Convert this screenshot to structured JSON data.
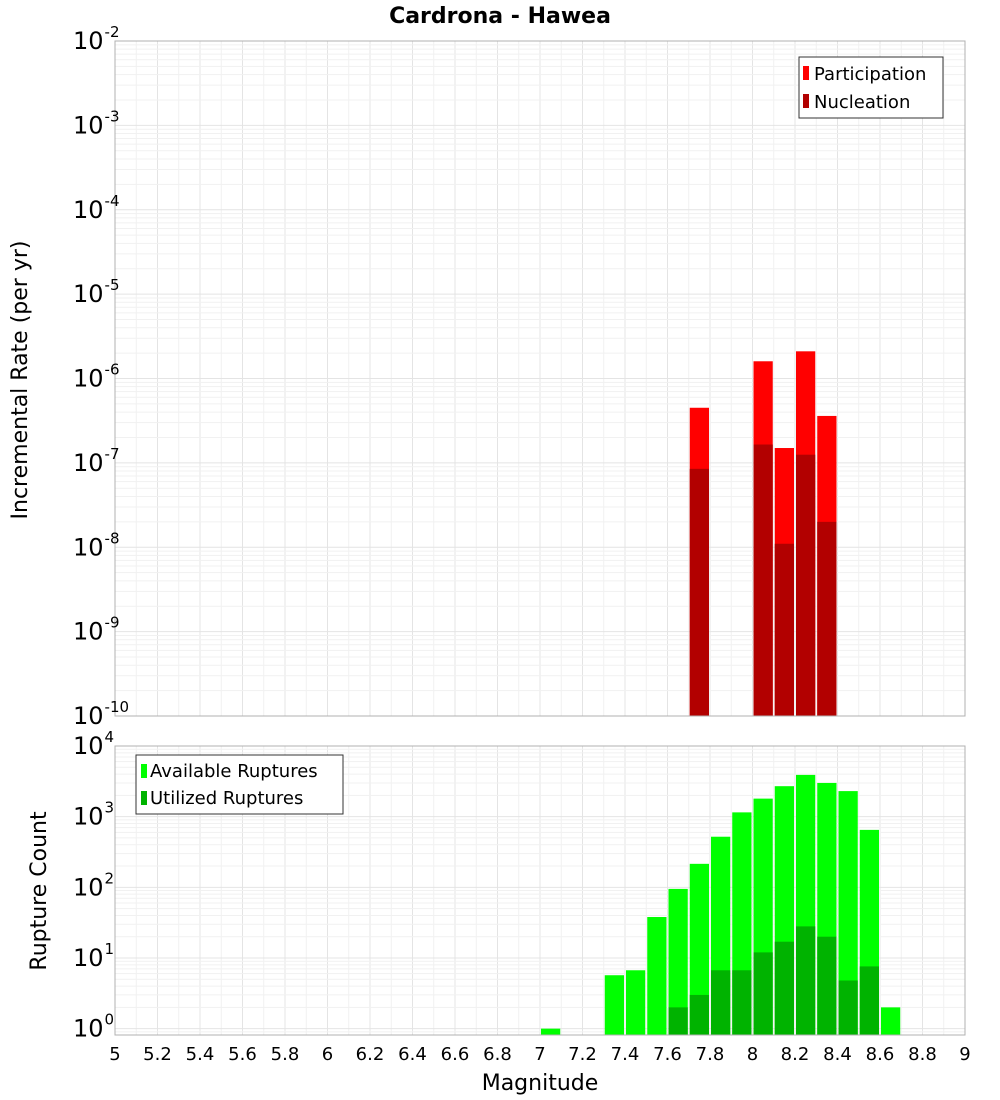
{
  "title": "Cardrona - Hawea",
  "chart_data": [
    {
      "type": "bar",
      "name": "incremental-rate",
      "ylabel": "Incremental Rate (per yr)",
      "yscale": "log",
      "ylim_exp": [
        -10,
        -2
      ],
      "yticks": [
        {
          "base": "10",
          "exp": "-10"
        },
        {
          "base": "10",
          "exp": "-9"
        },
        {
          "base": "10",
          "exp": "-8"
        },
        {
          "base": "10",
          "exp": "-7"
        },
        {
          "base": "10",
          "exp": "-6"
        },
        {
          "base": "10",
          "exp": "-5"
        },
        {
          "base": "10",
          "exp": "-4"
        },
        {
          "base": "10",
          "exp": "-3"
        },
        {
          "base": "10",
          "exp": "-2"
        }
      ],
      "legend_position": "top-right",
      "series": [
        {
          "name": "Participation",
          "color": "#ff0000",
          "x": [
            7.75,
            8.05,
            8.15,
            8.25,
            8.35
          ],
          "values": [
            4.5e-07,
            1.6e-06,
            1.5e-07,
            2.1e-06,
            3.6e-07
          ]
        },
        {
          "name": "Nucleation",
          "color": "#b20000",
          "x": [
            7.75,
            8.05,
            8.15,
            8.25,
            8.35
          ],
          "values": [
            8.5e-08,
            1.65e-07,
            1.1e-08,
            1.25e-07,
            2e-08
          ]
        }
      ]
    },
    {
      "type": "bar",
      "name": "rupture-count",
      "ylabel": "Rupture Count",
      "yscale": "log",
      "ylim_exp": [
        -0.09,
        4
      ],
      "yticks": [
        {
          "base": "10",
          "exp": "0"
        },
        {
          "base": "10",
          "exp": "1"
        },
        {
          "base": "10",
          "exp": "2"
        },
        {
          "base": "10",
          "exp": "3"
        },
        {
          "base": "10",
          "exp": "4"
        }
      ],
      "legend_position": "top-left",
      "series": [
        {
          "name": "Available Ruptures",
          "color": "#00ff00",
          "x": [
            7.05,
            7.35,
            7.45,
            7.55,
            7.65,
            7.75,
            7.85,
            7.95,
            8.05,
            8.15,
            8.25,
            8.35,
            8.45,
            8.55,
            8.65
          ],
          "values": [
            1.0,
            5.7,
            6.7,
            38,
            95,
            215,
            520,
            1150,
            1800,
            2700,
            3900,
            3000,
            2300,
            650,
            2.0
          ]
        },
        {
          "name": "Utilized Ruptures",
          "color": "#00b300",
          "x": [
            7.65,
            7.75,
            7.85,
            7.95,
            8.05,
            8.15,
            8.25,
            8.35,
            8.45,
            8.55
          ],
          "values": [
            2.0,
            3.0,
            6.7,
            6.7,
            12,
            17,
            28,
            20,
            4.8,
            7.6
          ]
        }
      ]
    }
  ],
  "xaxis": {
    "label": "Magnitude",
    "xlim": [
      5,
      9
    ],
    "bin_width": 0.1,
    "ticks": [
      "5",
      "5.2",
      "5.4",
      "5.6",
      "5.8",
      "6",
      "6.2",
      "6.4",
      "6.6",
      "6.8",
      "7",
      "7.2",
      "7.4",
      "7.6",
      "7.8",
      "8",
      "8.2",
      "8.4",
      "8.6",
      "8.8",
      "9"
    ]
  }
}
